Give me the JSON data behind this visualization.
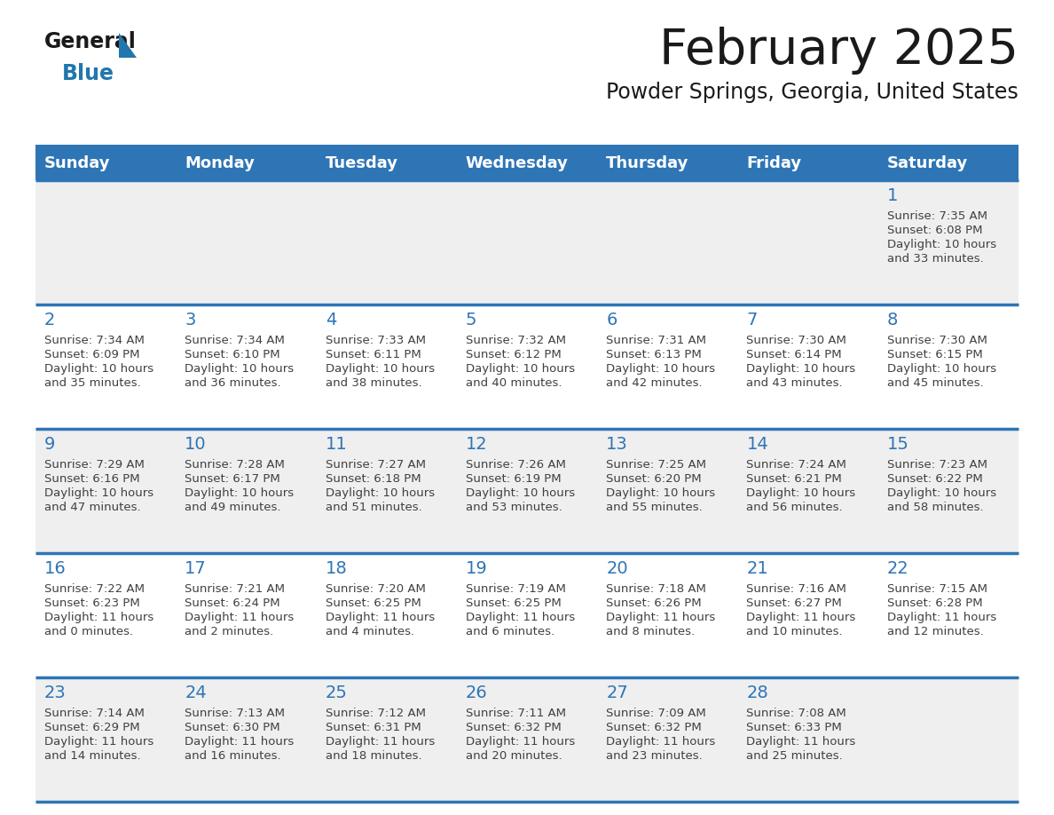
{
  "title": "February 2025",
  "subtitle": "Powder Springs, Georgia, United States",
  "header_bg_color": "#2e75b6",
  "header_text_color": "#ffffff",
  "day_headers": [
    "Sunday",
    "Monday",
    "Tuesday",
    "Wednesday",
    "Thursday",
    "Friday",
    "Saturday"
  ],
  "row_bg_colors": [
    "#efefef",
    "#ffffff"
  ],
  "separator_color": "#2e75b6",
  "title_color": "#1a1a1a",
  "subtitle_color": "#1a1a1a",
  "day_num_color": "#2e75b6",
  "cell_text_color": "#404040",
  "logo_general_color": "#1a1a1a",
  "logo_blue_color": "#2176ae",
  "calendar_data": [
    [
      null,
      null,
      null,
      null,
      null,
      null,
      {
        "day": "1",
        "sunrise": "7:35 AM",
        "sunset": "6:08 PM",
        "daylight_h": "10 hours",
        "daylight_m": "and 33 minutes."
      }
    ],
    [
      {
        "day": "2",
        "sunrise": "7:34 AM",
        "sunset": "6:09 PM",
        "daylight_h": "10 hours",
        "daylight_m": "and 35 minutes."
      },
      {
        "day": "3",
        "sunrise": "7:34 AM",
        "sunset": "6:10 PM",
        "daylight_h": "10 hours",
        "daylight_m": "and 36 minutes."
      },
      {
        "day": "4",
        "sunrise": "7:33 AM",
        "sunset": "6:11 PM",
        "daylight_h": "10 hours",
        "daylight_m": "and 38 minutes."
      },
      {
        "day": "5",
        "sunrise": "7:32 AM",
        "sunset": "6:12 PM",
        "daylight_h": "10 hours",
        "daylight_m": "and 40 minutes."
      },
      {
        "day": "6",
        "sunrise": "7:31 AM",
        "sunset": "6:13 PM",
        "daylight_h": "10 hours",
        "daylight_m": "and 42 minutes."
      },
      {
        "day": "7",
        "sunrise": "7:30 AM",
        "sunset": "6:14 PM",
        "daylight_h": "10 hours",
        "daylight_m": "and 43 minutes."
      },
      {
        "day": "8",
        "sunrise": "7:30 AM",
        "sunset": "6:15 PM",
        "daylight_h": "10 hours",
        "daylight_m": "and 45 minutes."
      }
    ],
    [
      {
        "day": "9",
        "sunrise": "7:29 AM",
        "sunset": "6:16 PM",
        "daylight_h": "10 hours",
        "daylight_m": "and 47 minutes."
      },
      {
        "day": "10",
        "sunrise": "7:28 AM",
        "sunset": "6:17 PM",
        "daylight_h": "10 hours",
        "daylight_m": "and 49 minutes."
      },
      {
        "day": "11",
        "sunrise": "7:27 AM",
        "sunset": "6:18 PM",
        "daylight_h": "10 hours",
        "daylight_m": "and 51 minutes."
      },
      {
        "day": "12",
        "sunrise": "7:26 AM",
        "sunset": "6:19 PM",
        "daylight_h": "10 hours",
        "daylight_m": "and 53 minutes."
      },
      {
        "day": "13",
        "sunrise": "7:25 AM",
        "sunset": "6:20 PM",
        "daylight_h": "10 hours",
        "daylight_m": "and 55 minutes."
      },
      {
        "day": "14",
        "sunrise": "7:24 AM",
        "sunset": "6:21 PM",
        "daylight_h": "10 hours",
        "daylight_m": "and 56 minutes."
      },
      {
        "day": "15",
        "sunrise": "7:23 AM",
        "sunset": "6:22 PM",
        "daylight_h": "10 hours",
        "daylight_m": "and 58 minutes."
      }
    ],
    [
      {
        "day": "16",
        "sunrise": "7:22 AM",
        "sunset": "6:23 PM",
        "daylight_h": "11 hours",
        "daylight_m": "and 0 minutes."
      },
      {
        "day": "17",
        "sunrise": "7:21 AM",
        "sunset": "6:24 PM",
        "daylight_h": "11 hours",
        "daylight_m": "and 2 minutes."
      },
      {
        "day": "18",
        "sunrise": "7:20 AM",
        "sunset": "6:25 PM",
        "daylight_h": "11 hours",
        "daylight_m": "and 4 minutes."
      },
      {
        "day": "19",
        "sunrise": "7:19 AM",
        "sunset": "6:25 PM",
        "daylight_h": "11 hours",
        "daylight_m": "and 6 minutes."
      },
      {
        "day": "20",
        "sunrise": "7:18 AM",
        "sunset": "6:26 PM",
        "daylight_h": "11 hours",
        "daylight_m": "and 8 minutes."
      },
      {
        "day": "21",
        "sunrise": "7:16 AM",
        "sunset": "6:27 PM",
        "daylight_h": "11 hours",
        "daylight_m": "and 10 minutes."
      },
      {
        "day": "22",
        "sunrise": "7:15 AM",
        "sunset": "6:28 PM",
        "daylight_h": "11 hours",
        "daylight_m": "and 12 minutes."
      }
    ],
    [
      {
        "day": "23",
        "sunrise": "7:14 AM",
        "sunset": "6:29 PM",
        "daylight_h": "11 hours",
        "daylight_m": "and 14 minutes."
      },
      {
        "day": "24",
        "sunrise": "7:13 AM",
        "sunset": "6:30 PM",
        "daylight_h": "11 hours",
        "daylight_m": "and 16 minutes."
      },
      {
        "day": "25",
        "sunrise": "7:12 AM",
        "sunset": "6:31 PM",
        "daylight_h": "11 hours",
        "daylight_m": "and 18 minutes."
      },
      {
        "day": "26",
        "sunrise": "7:11 AM",
        "sunset": "6:32 PM",
        "daylight_h": "11 hours",
        "daylight_m": "and 20 minutes."
      },
      {
        "day": "27",
        "sunrise": "7:09 AM",
        "sunset": "6:32 PM",
        "daylight_h": "11 hours",
        "daylight_m": "and 23 minutes."
      },
      {
        "day": "28",
        "sunrise": "7:08 AM",
        "sunset": "6:33 PM",
        "daylight_h": "11 hours",
        "daylight_m": "and 25 minutes."
      },
      null
    ]
  ]
}
